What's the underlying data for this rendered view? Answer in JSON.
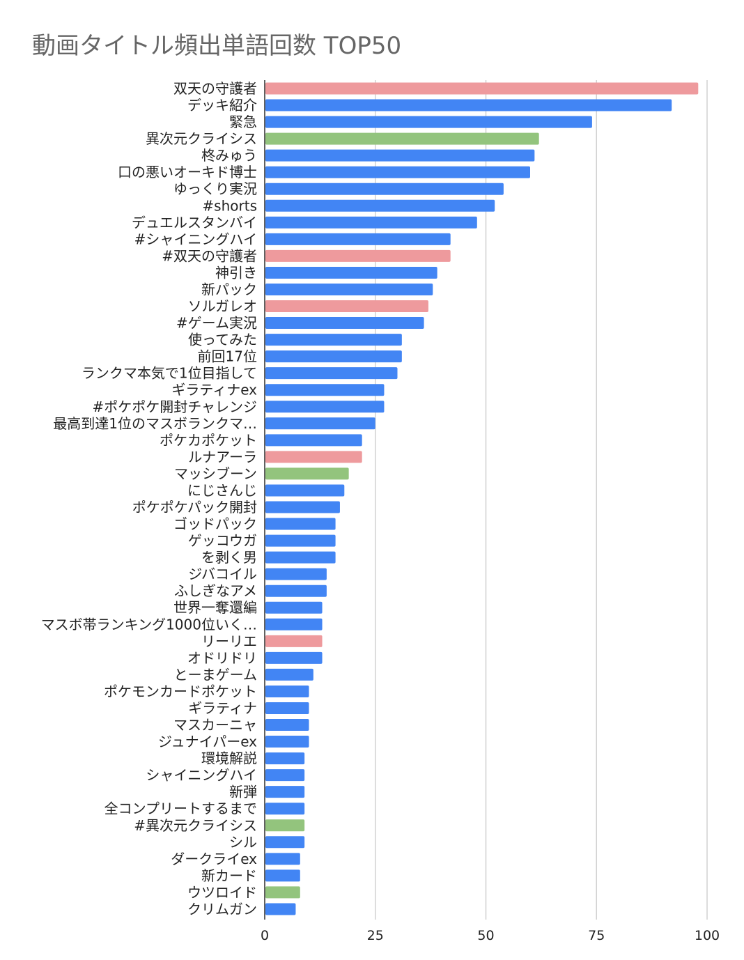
{
  "chart_data": {
    "type": "bar",
    "orientation": "horizontal",
    "title": "動画タイトル頻出単語回数 TOP50",
    "xlim": [
      0,
      100
    ],
    "xticks": [
      0,
      25,
      50,
      75,
      100
    ],
    "grid": "vertical",
    "legend": "none",
    "colors": {
      "blue": "#4285f4",
      "red": "#ee9a9d",
      "green": "#93c47d"
    },
    "categories": [
      "双天の守護者",
      "デッキ紹介",
      "緊急",
      "異次元クライシス",
      "柊みゅう",
      "口の悪いオーキド博士",
      "ゆっくり実況",
      "#shorts",
      "デュエルスタンバイ",
      "#シャイニングハイ",
      "#双天の守護者",
      "神引き",
      "新パック",
      "ソルガレオ",
      "#ゲーム実況",
      "使ってみた",
      "前回17位",
      "ランクマ本気で1位目指して",
      "ギラティナex",
      "#ポケポケ開封チャレンジ",
      "最高到達1位のマスボランクマ…",
      "ポケカポケット",
      "ルナアーラ",
      "マッシブーン",
      "にじさんじ",
      "ポケポケパック開封",
      "ゴッドパック",
      "ゲッコウガ",
      "を剥く男",
      "ジバコイル",
      "ふしぎなアメ",
      "世界一奪還編",
      "マスボ帯ランキング1000位いく…",
      "リーリエ",
      "オドリドリ",
      "とーまゲーム",
      "ポケモンカードポケット",
      "ギラティナ",
      "マスカーニャ",
      "ジュナイパーex",
      "環境解説",
      "シャイニングハイ",
      "新弾",
      "全コンプリートするまで",
      "#異次元クライシス",
      "シル",
      "ダークライex",
      "新カード",
      "ウツロイド",
      "クリムガン"
    ],
    "values": [
      98,
      92,
      74,
      62,
      61,
      60,
      54,
      52,
      48,
      42,
      42,
      39,
      38,
      37,
      36,
      31,
      31,
      30,
      27,
      27,
      25,
      22,
      22,
      19,
      18,
      17,
      16,
      16,
      16,
      14,
      14,
      13,
      13,
      13,
      13,
      11,
      10,
      10,
      10,
      10,
      9,
      9,
      9,
      9,
      9,
      9,
      8,
      8,
      8,
      7
    ],
    "bar_colors": [
      "red",
      "blue",
      "blue",
      "green",
      "blue",
      "blue",
      "blue",
      "blue",
      "blue",
      "blue",
      "red",
      "blue",
      "blue",
      "red",
      "blue",
      "blue",
      "blue",
      "blue",
      "blue",
      "blue",
      "blue",
      "blue",
      "red",
      "green",
      "blue",
      "blue",
      "blue",
      "blue",
      "blue",
      "blue",
      "blue",
      "blue",
      "blue",
      "red",
      "blue",
      "blue",
      "blue",
      "blue",
      "blue",
      "blue",
      "blue",
      "blue",
      "blue",
      "blue",
      "green",
      "blue",
      "blue",
      "blue",
      "green",
      "blue"
    ]
  }
}
